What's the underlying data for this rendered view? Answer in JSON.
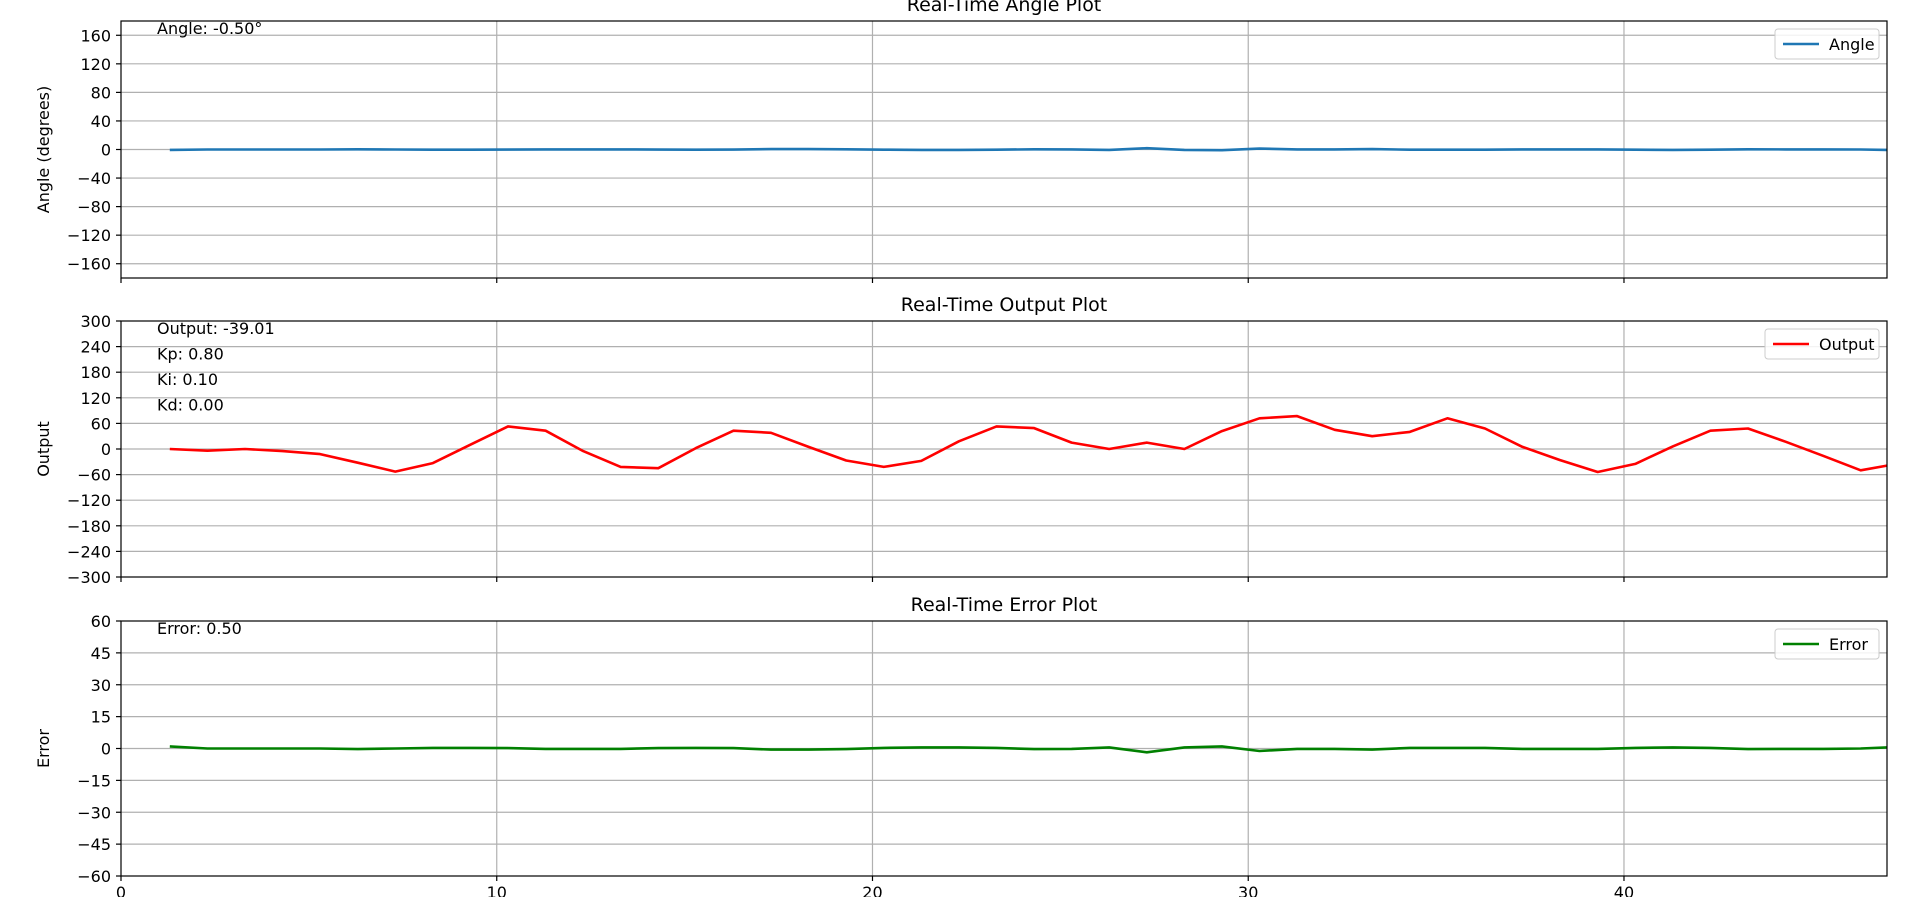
{
  "chart_data": [
    {
      "type": "line",
      "title": "Real-Time Angle Plot",
      "xlabel": "",
      "ylabel": "Angle (degrees)",
      "xlim": [
        0,
        47
      ],
      "ylim": [
        -180,
        180
      ],
      "yticks": [
        -160,
        -120,
        -80,
        -40,
        0,
        40,
        80,
        120,
        160
      ],
      "xticks": [
        0,
        10,
        20,
        30,
        40
      ],
      "show_xtick_labels": false,
      "grid": true,
      "legend_position": "top-right",
      "annotations": [
        "Angle: -0.50°"
      ],
      "series": [
        {
          "name": "Angle",
          "color": "#1f77b4",
          "x": [
            1.3,
            2.3,
            3.3,
            4.3,
            5.3,
            6.3,
            7.3,
            8.3,
            9.3,
            10.3,
            11.3,
            12.3,
            13.3,
            14.3,
            15.3,
            16.3,
            17.3,
            18.3,
            19.3,
            20.3,
            21.3,
            22.3,
            23.3,
            24.3,
            25.3,
            26.3,
            27.3,
            28.3,
            29.3,
            30.3,
            31.3,
            32.3,
            33.3,
            34.3,
            35.3,
            36.3,
            37.3,
            38.3,
            39.3,
            40.3,
            41.3,
            42.3,
            43.3,
            44.3,
            45.3,
            46.3,
            47.0
          ],
          "values": [
            -0.5,
            0,
            0,
            0,
            0,
            0.3,
            0,
            -0.3,
            -0.3,
            -0.2,
            0.2,
            0.2,
            0.2,
            -0.2,
            -0.3,
            -0.2,
            0.5,
            0.5,
            0.3,
            -0.3,
            -0.5,
            -0.5,
            -0.3,
            0.3,
            0.2,
            -0.5,
            1.8,
            -0.5,
            -1.0,
            1.2,
            0.2,
            0.2,
            0.5,
            -0.3,
            -0.3,
            -0.3,
            0.2,
            0.2,
            0.2,
            -0.3,
            -0.5,
            -0.3,
            0.3,
            0.2,
            0.2,
            0,
            -0.5
          ]
        }
      ]
    },
    {
      "type": "line",
      "title": "Real-Time Output Plot",
      "xlabel": "",
      "ylabel": "Output",
      "xlim": [
        0,
        47
      ],
      "ylim": [
        -300,
        300
      ],
      "yticks": [
        -300,
        -240,
        -180,
        -120,
        -60,
        0,
        60,
        120,
        180,
        240,
        300
      ],
      "xticks": [
        0,
        10,
        20,
        30,
        40
      ],
      "show_xtick_labels": false,
      "grid": true,
      "legend_position": "top-right",
      "annotations": [
        "Output: -39.01",
        "Kp: 0.80",
        "Ki: 0.10",
        "Kd: 0.00"
      ],
      "series": [
        {
          "name": "Output",
          "color": "#ff0000",
          "x": [
            1.3,
            2.3,
            3.3,
            4.3,
            5.3,
            6.3,
            7.3,
            8.3,
            9.3,
            10.3,
            11.3,
            12.3,
            13.3,
            14.3,
            15.3,
            16.3,
            17.3,
            18.3,
            19.3,
            20.3,
            21.3,
            22.3,
            23.3,
            24.3,
            25.3,
            26.3,
            27.3,
            28.3,
            29.3,
            30.3,
            31.3,
            32.3,
            33.3,
            34.3,
            35.3,
            36.3,
            37.3,
            38.3,
            39.3,
            40.3,
            41.3,
            42.3,
            43.3,
            44.3,
            45.3,
            46.3,
            47.0
          ],
          "values": [
            0,
            -4,
            0,
            -5,
            -12,
            -32,
            -53,
            -33,
            10,
            53,
            43,
            -5,
            -42,
            -45,
            2,
            43,
            38,
            5,
            -27,
            -42,
            -28,
            18,
            53,
            49,
            15,
            0,
            15,
            0,
            42,
            72,
            77,
            45,
            30,
            40,
            72,
            48,
            5,
            -26,
            -54,
            -35,
            6,
            43,
            48,
            17,
            -16,
            -50,
            -39
          ]
        }
      ]
    },
    {
      "type": "line",
      "title": "Real-Time Error Plot",
      "xlabel": "",
      "ylabel": "Error",
      "xlim": [
        0,
        47
      ],
      "ylim": [
        -60,
        60
      ],
      "yticks": [
        -60,
        -45,
        -30,
        -15,
        0,
        15,
        30,
        45,
        60
      ],
      "xticks": [
        0,
        10,
        20,
        30,
        40
      ],
      "show_xtick_labels": true,
      "grid": true,
      "legend_position": "top-right",
      "annotations": [
        "Error: 0.50"
      ],
      "series": [
        {
          "name": "Error",
          "color": "#008000",
          "x": [
            1.3,
            2.3,
            3.3,
            4.3,
            5.3,
            6.3,
            7.3,
            8.3,
            9.3,
            10.3,
            11.3,
            12.3,
            13.3,
            14.3,
            15.3,
            16.3,
            17.3,
            18.3,
            19.3,
            20.3,
            21.3,
            22.3,
            23.3,
            24.3,
            25.3,
            26.3,
            27.3,
            28.3,
            29.3,
            30.3,
            31.3,
            32.3,
            33.3,
            34.3,
            35.3,
            36.3,
            37.3,
            38.3,
            39.3,
            40.3,
            41.3,
            42.3,
            43.3,
            44.3,
            45.3,
            46.3,
            47.0
          ],
          "values": [
            1.0,
            0,
            0,
            0,
            0,
            -0.3,
            0,
            0.3,
            0.3,
            0.2,
            -0.2,
            -0.2,
            -0.2,
            0.2,
            0.3,
            0.2,
            -0.5,
            -0.5,
            -0.3,
            0.3,
            0.5,
            0.5,
            0.3,
            -0.3,
            -0.2,
            0.5,
            -1.8,
            0.5,
            1.0,
            -1.2,
            -0.2,
            -0.2,
            -0.5,
            0.3,
            0.3,
            0.3,
            -0.2,
            -0.2,
            -0.2,
            0.3,
            0.5,
            0.3,
            -0.3,
            -0.2,
            -0.2,
            0,
            0.5
          ]
        }
      ]
    }
  ]
}
